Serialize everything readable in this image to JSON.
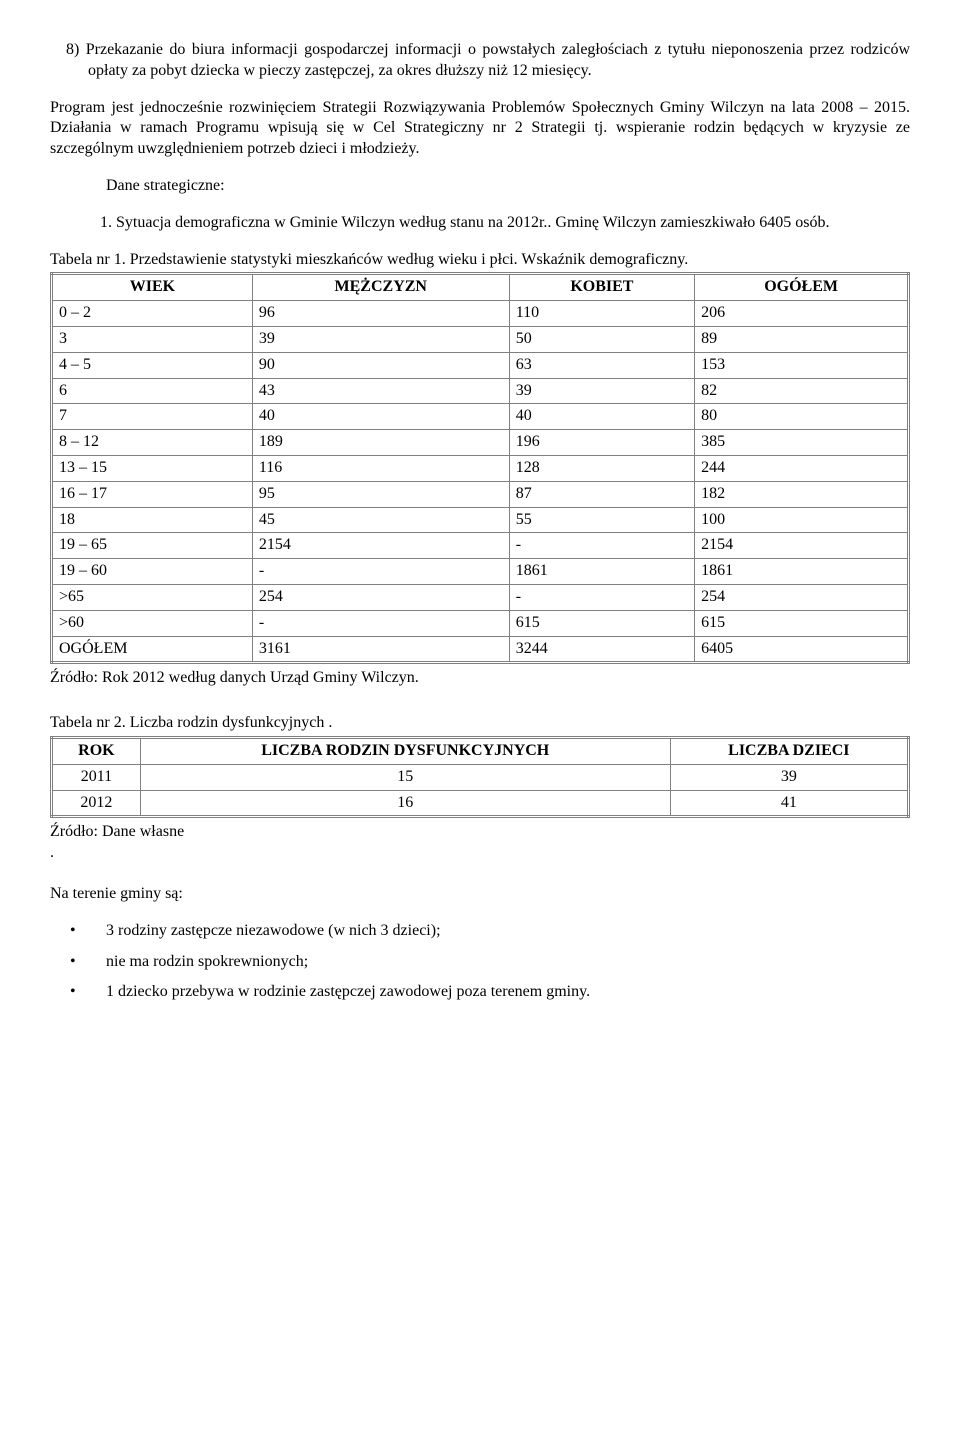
{
  "para1_num": "8)",
  "para1": "Przekazanie do biura informacji gospodarczej informacji o powstałych zaległościach z tytułu nieponoszenia przez rodziców opłaty za pobyt dziecka w pieczy zastępczej, za okres dłuższy niż 12 miesięcy.",
  "para2": "Program jest jednocześnie rozwinięciem Strategii Rozwiązywania Problemów Społecznych Gminy Wilczyn na lata 2008 – 2015. Działania w ramach Programu wpisują się w Cel Strategiczny nr 2 Strategii tj. wspieranie rodzin będących w kryzysie ze szczególnym uwzględnieniem potrzeb dzieci i młodzieży.",
  "dane_label": "Dane strategiczne:",
  "item1_num": "1.",
  "item1": "Sytuacja demograficzna w Gminie Wilczyn według stanu na 2012r.. Gminę Wilczyn zamieszkiwało 6405 osób.",
  "tabela1_caption": "Tabela nr 1. Przedstawienie statystyki mieszkańców według wieku i płci. Wskaźnik demograficzny.",
  "t1": {
    "headers": [
      "WIEK",
      "MĘŻCZYZN",
      "KOBIET",
      "OGÓŁEM"
    ],
    "rows": [
      [
        "0 – 2",
        "96",
        "110",
        "206"
      ],
      [
        "3",
        "39",
        "50",
        "89"
      ],
      [
        "4 – 5",
        "90",
        "63",
        "153"
      ],
      [
        "6",
        "43",
        "39",
        "82"
      ],
      [
        "7",
        "40",
        "40",
        "80"
      ],
      [
        "8 – 12",
        "189",
        "196",
        "385"
      ],
      [
        "13 – 15",
        "116",
        "128",
        "244"
      ],
      [
        "16 – 17",
        "95",
        "87",
        "182"
      ],
      [
        "18",
        "45",
        "55",
        "100"
      ],
      [
        "19 – 65",
        "2154",
        "-",
        "2154"
      ],
      [
        "19 – 60",
        "-",
        "1861",
        "1861"
      ],
      [
        ">65",
        "254",
        "-",
        "254"
      ],
      [
        ">60",
        "-",
        "615",
        "615"
      ],
      [
        "OGÓŁEM",
        "3161",
        "3244",
        "6405"
      ]
    ]
  },
  "source1": "Źródło: Rok 2012 według danych Urząd Gminy Wilczyn.",
  "tabela2_caption": "Tabela nr 2. Liczba rodzin dysfunkcyjnych .",
  "t2": {
    "headers": [
      "ROK",
      "LICZBA RODZIN DYSFUNKCYJNYCH",
      "LICZBA DZIECI"
    ],
    "rows": [
      [
        "2011",
        "15",
        "39"
      ],
      [
        "2012",
        "16",
        "41"
      ]
    ]
  },
  "source2": "Źródło: Dane własne",
  "dot": ".",
  "teren": "Na terenie gminy są:",
  "bullets": [
    "3 rodziny zastępcze niezawodowe (w nich 3 dzieci);",
    "nie ma rodzin spokrewnionych;",
    "1 dziecko przebywa w rodzinie zastępczej zawodowej poza terenem gminy."
  ]
}
